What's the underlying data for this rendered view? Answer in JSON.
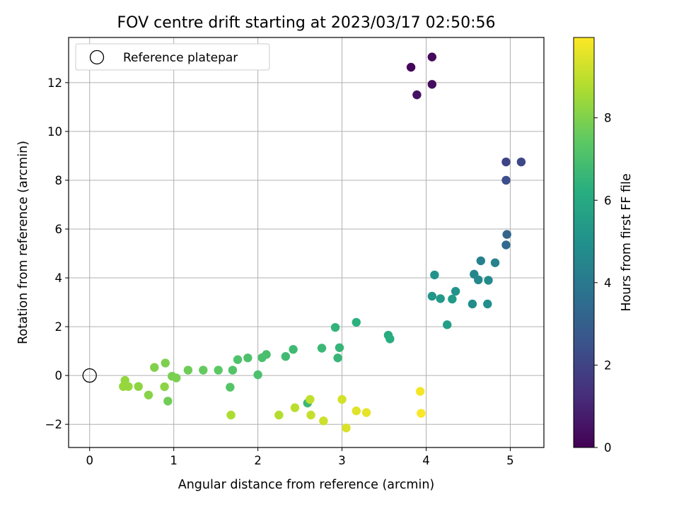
{
  "chart_data": {
    "type": "scatter",
    "title": "FOV centre drift starting at 2023/03/17 02:50:56",
    "xlabel": "Angular distance from reference (arcmin)",
    "ylabel": "Rotation from reference (arcmin)",
    "xlim": [
      -0.25,
      5.4
    ],
    "ylim": [
      -2.95,
      13.85
    ],
    "xticks": [
      0,
      1,
      2,
      3,
      4,
      5
    ],
    "yticks": [
      -2,
      0,
      2,
      4,
      6,
      8,
      10,
      12
    ],
    "xtick_labels": [
      "0",
      "1",
      "2",
      "3",
      "4",
      "5"
    ],
    "ytick_labels": [
      "−2",
      "0",
      "2",
      "4",
      "6",
      "8",
      "10",
      "12"
    ],
    "grid": true,
    "legend": {
      "placement": "upper-left",
      "entries": [
        {
          "label": "Reference platepar",
          "marker": "open-circle",
          "x": 0,
          "y": 0
        }
      ]
    },
    "colorbar": {
      "label": "Hours from first FF file",
      "colormap": "viridis",
      "range": [
        0,
        9.95
      ],
      "ticks": [
        0,
        2,
        4,
        6,
        8
      ],
      "tick_labels": [
        "0",
        "2",
        "4",
        "6",
        "8"
      ]
    },
    "points": [
      {
        "x": 3.82,
        "y": 12.63,
        "c": 0.15
      },
      {
        "x": 4.07,
        "y": 13.05,
        "c": 0.25
      },
      {
        "x": 4.07,
        "y": 11.93,
        "c": 0.35
      },
      {
        "x": 3.89,
        "y": 11.5,
        "c": 0.45
      },
      {
        "x": 4.95,
        "y": 8.75,
        "c": 2.0
      },
      {
        "x": 5.13,
        "y": 8.75,
        "c": 2.15
      },
      {
        "x": 4.95,
        "y": 8.0,
        "c": 2.4
      },
      {
        "x": 4.96,
        "y": 5.78,
        "c": 3.2
      },
      {
        "x": 4.95,
        "y": 5.35,
        "c": 3.4
      },
      {
        "x": 4.65,
        "y": 4.7,
        "c": 4.3
      },
      {
        "x": 4.82,
        "y": 4.62,
        "c": 4.4
      },
      {
        "x": 4.57,
        "y": 4.15,
        "c": 4.5
      },
      {
        "x": 4.62,
        "y": 3.92,
        "c": 4.6
      },
      {
        "x": 4.74,
        "y": 3.9,
        "c": 4.7
      },
      {
        "x": 4.55,
        "y": 2.93,
        "c": 4.8
      },
      {
        "x": 4.73,
        "y": 2.93,
        "c": 4.9
      },
      {
        "x": 4.1,
        "y": 4.12,
        "c": 5.0
      },
      {
        "x": 4.35,
        "y": 3.45,
        "c": 5.1
      },
      {
        "x": 4.07,
        "y": 3.25,
        "c": 5.2
      },
      {
        "x": 4.17,
        "y": 3.15,
        "c": 5.3
      },
      {
        "x": 4.31,
        "y": 3.13,
        "c": 5.4
      },
      {
        "x": 4.25,
        "y": 2.08,
        "c": 5.55
      },
      {
        "x": 3.55,
        "y": 1.65,
        "c": 6.1
      },
      {
        "x": 3.57,
        "y": 1.5,
        "c": 6.2
      },
      {
        "x": 3.17,
        "y": 2.18,
        "c": 6.3
      },
      {
        "x": 2.92,
        "y": 1.97,
        "c": 6.45
      },
      {
        "x": 2.97,
        "y": 1.14,
        "c": 6.55
      },
      {
        "x": 2.95,
        "y": 0.72,
        "c": 6.6
      },
      {
        "x": 2.76,
        "y": 1.12,
        "c": 6.65
      },
      {
        "x": 2.59,
        "y": -1.13,
        "c": 6.7
      },
      {
        "x": 2.42,
        "y": 1.07,
        "c": 6.75
      },
      {
        "x": 2.33,
        "y": 0.78,
        "c": 6.8
      },
      {
        "x": 2.1,
        "y": 0.86,
        "c": 6.95
      },
      {
        "x": 2.05,
        "y": 0.73,
        "c": 7.0
      },
      {
        "x": 2.0,
        "y": 0.03,
        "c": 7.05
      },
      {
        "x": 1.88,
        "y": 0.72,
        "c": 7.1
      },
      {
        "x": 1.76,
        "y": 0.65,
        "c": 7.15
      },
      {
        "x": 1.7,
        "y": 0.22,
        "c": 7.2
      },
      {
        "x": 1.67,
        "y": -0.48,
        "c": 7.25
      },
      {
        "x": 1.53,
        "y": 0.22,
        "c": 7.4
      },
      {
        "x": 1.35,
        "y": 0.22,
        "c": 7.55
      },
      {
        "x": 1.17,
        "y": 0.22,
        "c": 7.7
      },
      {
        "x": 0.98,
        "y": -0.03,
        "c": 7.85
      },
      {
        "x": 1.03,
        "y": -0.1,
        "c": 7.9
      },
      {
        "x": 0.9,
        "y": 0.51,
        "c": 7.95
      },
      {
        "x": 0.77,
        "y": 0.33,
        "c": 8.0
      },
      {
        "x": 0.93,
        "y": -1.05,
        "c": 7.75
      },
      {
        "x": 0.7,
        "y": -0.8,
        "c": 8.1
      },
      {
        "x": 0.89,
        "y": -0.46,
        "c": 8.2
      },
      {
        "x": 0.58,
        "y": -0.45,
        "c": 8.2
      },
      {
        "x": 0.42,
        "y": -0.2,
        "c": 8.3
      },
      {
        "x": 0.46,
        "y": -0.45,
        "c": 8.35
      },
      {
        "x": 0.4,
        "y": -0.45,
        "c": 8.35
      },
      {
        "x": 1.68,
        "y": -1.62,
        "c": 8.7
      },
      {
        "x": 2.25,
        "y": -1.62,
        "c": 8.8
      },
      {
        "x": 2.44,
        "y": -1.32,
        "c": 8.9
      },
      {
        "x": 2.62,
        "y": -0.98,
        "c": 9.0
      },
      {
        "x": 2.63,
        "y": -1.62,
        "c": 9.1
      },
      {
        "x": 2.78,
        "y": -1.86,
        "c": 9.2
      },
      {
        "x": 3.0,
        "y": -0.98,
        "c": 9.3
      },
      {
        "x": 3.05,
        "y": -2.15,
        "c": 9.4
      },
      {
        "x": 3.17,
        "y": -1.45,
        "c": 9.5
      },
      {
        "x": 3.29,
        "y": -1.52,
        "c": 9.6
      },
      {
        "x": 3.93,
        "y": -0.65,
        "c": 9.8
      },
      {
        "x": 3.94,
        "y": -1.55,
        "c": 9.9
      }
    ]
  }
}
